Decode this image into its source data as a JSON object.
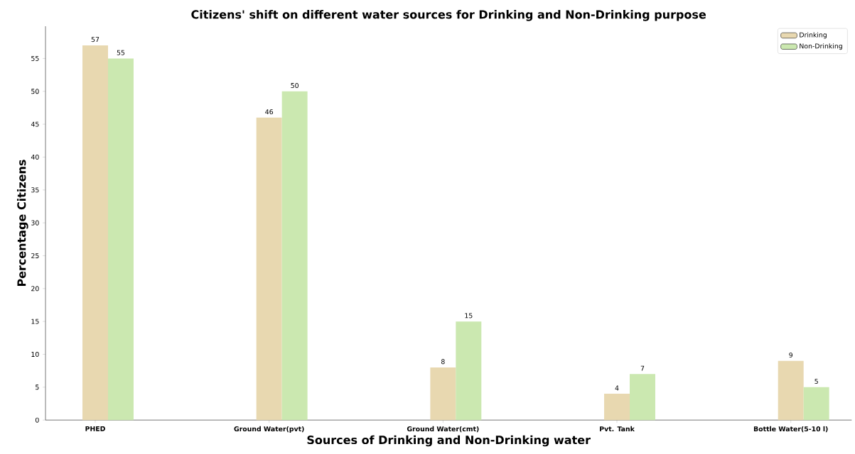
{
  "chart_data": {
    "type": "bar",
    "title": "Citizens' shift on different water sources for Drinking and Non-Drinking purpose",
    "xlabel": "Sources of Drinking and Non-Drinking water",
    "ylabel": "Percentage Citizens",
    "categories": [
      "PHED",
      "Ground Water(pvt)",
      "Ground Water(cmt)",
      "Pvt. Tank",
      "Bottle Water(5-10 l)"
    ],
    "series": [
      {
        "name": "Drinking",
        "color": "#e8d8b0",
        "values": [
          57,
          46,
          8,
          4,
          9
        ]
      },
      {
        "name": "Non-Drinking",
        "color": "#cbe8b0",
        "values": [
          55,
          50,
          15,
          7,
          5
        ]
      }
    ],
    "ylim": [
      0,
      59.9
    ],
    "yticks": [
      0,
      5,
      10,
      15,
      20,
      25,
      30,
      35,
      40,
      45,
      50,
      55
    ],
    "data_labels": true,
    "legend": "top right",
    "grid": false
  }
}
